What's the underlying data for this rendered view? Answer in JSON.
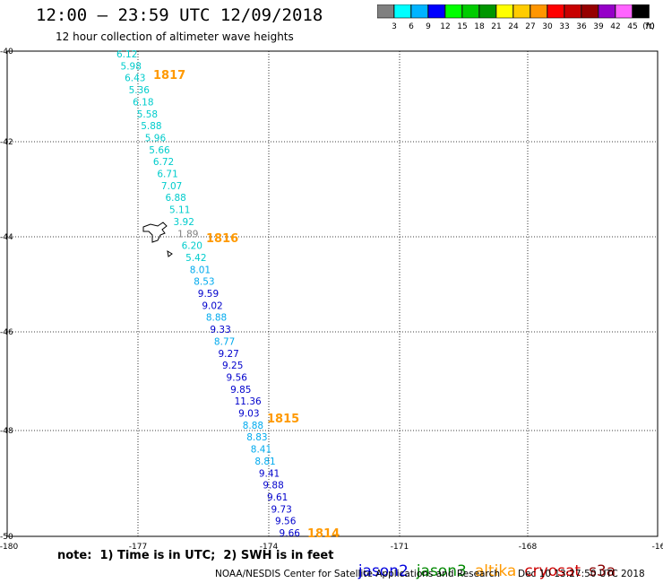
{
  "header": {
    "title": "12:00 – 23:59 UTC 12/09/2018",
    "subtitle": "12 hour collection of altimeter wave heights"
  },
  "color_scale": {
    "labels": [
      "3",
      "6",
      "9",
      "12",
      "15",
      "18",
      "21",
      "24",
      "27",
      "30",
      "33",
      "36",
      "39",
      "42",
      "45",
      "70"
    ],
    "unit": "(ft)",
    "colors": [
      "#808080",
      "#00ffff",
      "#00b4ff",
      "#0000ff",
      "#00ff00",
      "#00cc00",
      "#009600",
      "#ffff00",
      "#ffcc00",
      "#ff9600",
      "#ff0000",
      "#c80000",
      "#960000",
      "#9600c8",
      "#ff64ff",
      "#000000"
    ]
  },
  "footer": {
    "note": "note:  1) Time is in UTC;  2) SWH is in feet",
    "missions": [
      {
        "name": "jason2",
        "color": "#0000dd"
      },
      {
        "name": "jason3",
        "color": "#008800"
      },
      {
        "name": "altika",
        "color": "#ff9900"
      },
      {
        "name": "cryosat",
        "color": "#cc0000"
      },
      {
        "name": "s3a",
        "color": "#880000"
      }
    ],
    "credit": "NOAA/NESDIS Center for Satellite Applications and Research",
    "timestamp": "Dec 10 13:27:50 UTC 2018"
  },
  "chart_data": {
    "type": "scatter",
    "x_ticks": [
      "-180",
      "-177",
      "-174",
      "-171",
      "-168",
      "-16"
    ],
    "y_ticks": [
      "-40",
      "-42",
      "-44",
      "-46",
      "-48",
      "-50"
    ],
    "grid": true,
    "points": [
      {
        "v": "6.12",
        "c": "#00cccc"
      },
      {
        "v": "5.98",
        "c": "#00cccc"
      },
      {
        "v": "6.43",
        "c": "#00cccc"
      },
      {
        "v": "5.36",
        "c": "#00cccc"
      },
      {
        "v": "6.18",
        "c": "#00cccc"
      },
      {
        "v": "5.58",
        "c": "#00cccc"
      },
      {
        "v": "5.88",
        "c": "#00cccc"
      },
      {
        "v": "5.96",
        "c": "#00cccc"
      },
      {
        "v": "5.66",
        "c": "#00cccc"
      },
      {
        "v": "6.72",
        "c": "#00cccc"
      },
      {
        "v": "6.71",
        "c": "#00cccc"
      },
      {
        "v": "7.07",
        "c": "#00cccc"
      },
      {
        "v": "6.88",
        "c": "#00cccc"
      },
      {
        "v": "5.11",
        "c": "#00cccc"
      },
      {
        "v": "3.92",
        "c": "#00cccc"
      },
      {
        "v": "1.89",
        "c": "#808080"
      },
      {
        "v": "6.20",
        "c": "#00cccc"
      },
      {
        "v": "5.42",
        "c": "#00cccc"
      },
      {
        "v": "8.01",
        "c": "#00aaee"
      },
      {
        "v": "8.53",
        "c": "#00aaee"
      },
      {
        "v": "9.59",
        "c": "#0000cc"
      },
      {
        "v": "9.02",
        "c": "#0000cc"
      },
      {
        "v": "8.88",
        "c": "#00aaee"
      },
      {
        "v": "9.33",
        "c": "#0000cc"
      },
      {
        "v": "8.77",
        "c": "#00aaee"
      },
      {
        "v": "9.27",
        "c": "#0000cc"
      },
      {
        "v": "9.25",
        "c": "#0000cc"
      },
      {
        "v": "9.56",
        "c": "#0000cc"
      },
      {
        "v": "9.85",
        "c": "#0000cc"
      },
      {
        "v": "11.36",
        "c": "#0000cc"
      },
      {
        "v": "9.03",
        "c": "#0000cc"
      },
      {
        "v": "8.88",
        "c": "#00aaee"
      },
      {
        "v": "8.83",
        "c": "#00aaee"
      },
      {
        "v": "8.41",
        "c": "#00aaee"
      },
      {
        "v": "8.81",
        "c": "#00aaee"
      },
      {
        "v": "9.41",
        "c": "#0000cc"
      },
      {
        "v": "9.88",
        "c": "#0000cc"
      },
      {
        "v": "9.61",
        "c": "#0000cc"
      },
      {
        "v": "9.73",
        "c": "#0000cc"
      },
      {
        "v": "9.56",
        "c": "#0000cc"
      },
      {
        "v": "9.66",
        "c": "#0000cc"
      }
    ],
    "pass_labels": [
      {
        "text": "1817",
        "color": "#ff9900"
      },
      {
        "text": "1816",
        "color": "#ff9900"
      },
      {
        "text": "1815",
        "color": "#ff9900"
      },
      {
        "text": "1814",
        "color": "#ff9900"
      }
    ]
  }
}
